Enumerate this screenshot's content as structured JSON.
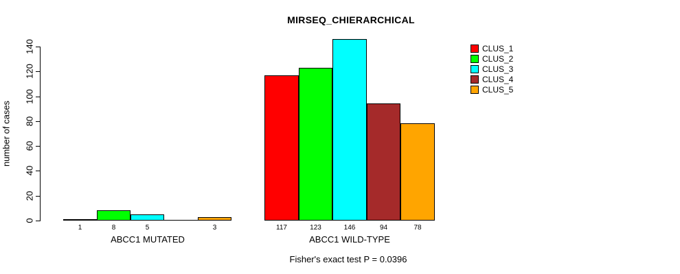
{
  "chart_data": {
    "type": "bar",
    "title": "MIRSEQ_CHIERARCHICAL",
    "ylabel": "number of cases",
    "xlabel": "",
    "ylim": [
      0,
      140
    ],
    "yticks": [
      0,
      20,
      40,
      60,
      80,
      100,
      120,
      140
    ],
    "grid": false,
    "legend_position": "top-right",
    "series_names": [
      "CLUS_1",
      "CLUS_2",
      "CLUS_3",
      "CLUS_4",
      "CLUS_5"
    ],
    "colors": [
      "#FF0000",
      "#00FF00",
      "#00FFFF",
      "#A52A2A",
      "#FFA500"
    ],
    "groups": [
      {
        "label": "ABCC1 MUTATED",
        "values": [
          1,
          8,
          5,
          0,
          3
        ],
        "bar_labels": [
          "1",
          "8",
          "5",
          "",
          "3"
        ]
      },
      {
        "label": "ABCC1 WILD-TYPE",
        "values": [
          117,
          123,
          146,
          94,
          78
        ],
        "bar_labels": [
          "117",
          "123",
          "146",
          "94",
          "78"
        ]
      }
    ],
    "annotation": "Fisher's exact test P = 0.0396"
  }
}
